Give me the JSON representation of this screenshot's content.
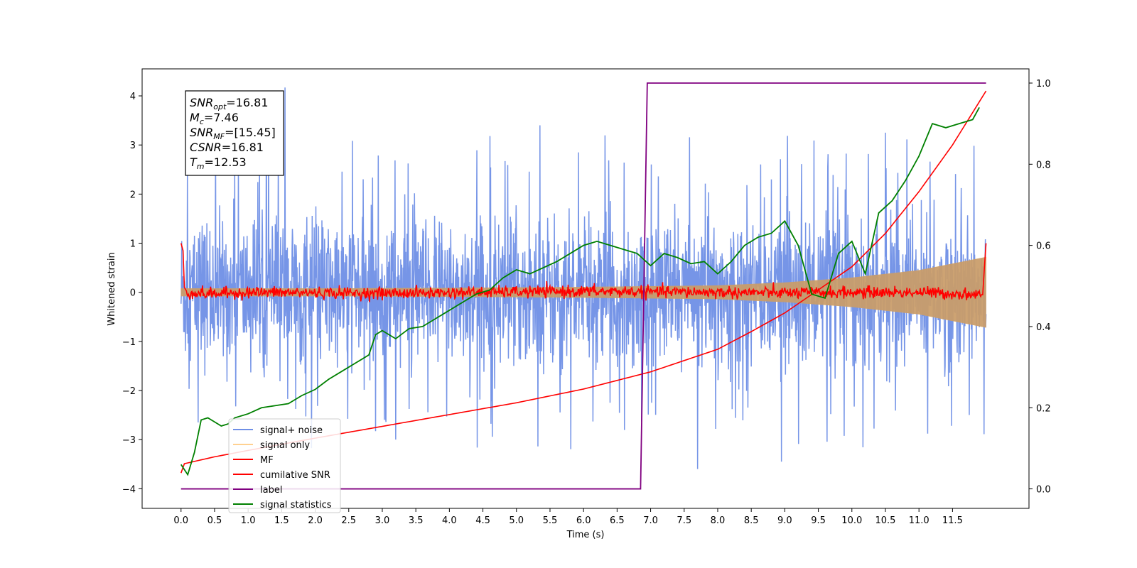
{
  "chart_data": {
    "type": "line",
    "xlabel": "Time (s)",
    "ylabel_left": "Whitened strain",
    "ylabel_right": "",
    "xlim": [
      -0.58,
      12.64
    ],
    "ylim_left": [
      -4.4,
      4.55
    ],
    "ylim_right": [
      -0.048,
      1.035
    ],
    "x_ticks": [
      "0.0",
      "0.5",
      "1.0",
      "1.5",
      "2.0",
      "2.5",
      "3.0",
      "3.5",
      "4.0",
      "4.5",
      "5.0",
      "5.5",
      "6.0",
      "6.5",
      "7.0",
      "7.5",
      "8.0",
      "8.5",
      "9.0",
      "9.5",
      "10.0",
      "10.5",
      "11.0",
      "11.5"
    ],
    "y_ticks_left": [
      "4",
      "3",
      "2",
      "1",
      "0",
      "−1",
      "−2",
      "−3",
      "−4"
    ],
    "y_ticks_right": [
      "1.0",
      "0.8",
      "0.6",
      "0.4",
      "0.2",
      "0.0"
    ],
    "grid": false,
    "legend_position": "lower-left",
    "annotation": {
      "lines": [
        {
          "sym": "SNR",
          "sub": "opt",
          "val": "=16.81"
        },
        {
          "sym": "M",
          "sub": "c",
          "val": "=7.46"
        },
        {
          "sym": "SNR",
          "sub": "MF",
          "val": "=[15.45]"
        },
        {
          "sym": "CSNR",
          "sub": "",
          "val": "=16.81"
        },
        {
          "sym": "T",
          "sub": "m",
          "val": "=12.53"
        }
      ]
    },
    "series": [
      {
        "name": "signal+ noise",
        "color": "#6f8fe6",
        "axis": "left",
        "style": "noise",
        "x_range": [
          0.0,
          12.0
        ],
        "envelope_upper": 2.5,
        "envelope_lower": -2.5,
        "dense_band": [
          -1.35,
          1.35
        ],
        "peak_values": [
          4.17,
          -3.6,
          3.4,
          -3.45
        ]
      },
      {
        "name": "signal only",
        "color": "#ffb347",
        "axis": "left",
        "style": "chirp",
        "x_range": [
          0.0,
          12.0
        ],
        "amplitude": {
          "x": [
            0.0,
            2.0,
            4.0,
            6.0,
            8.0,
            9.0,
            10.0,
            11.0,
            12.0
          ],
          "y": [
            0.08,
            0.08,
            0.09,
            0.11,
            0.14,
            0.2,
            0.3,
            0.45,
            0.72
          ]
        }
      },
      {
        "name": "MF",
        "color": "#ff0000",
        "axis": "left",
        "style": "mf",
        "x": [
          0.0,
          0.03,
          0.05,
          0.1,
          0.5,
          1.0,
          3.0,
          6.0,
          9.0,
          11.0,
          11.95,
          11.98,
          12.0
        ],
        "y": [
          1.0,
          0.85,
          0.1,
          -0.02,
          -0.03,
          0.0,
          -0.02,
          0.02,
          -0.01,
          0.0,
          -0.05,
          0.6,
          1.0
        ],
        "jitter": 0.06
      },
      {
        "name": "cumilative SNR",
        "color": "#ff0000",
        "axis": "left",
        "x": [
          0.0,
          0.02,
          0.5,
          1.0,
          2.0,
          3.0,
          4.0,
          5.0,
          6.0,
          7.0,
          8.0,
          8.5,
          9.0,
          9.5,
          10.0,
          10.5,
          11.0,
          11.5,
          12.0
        ],
        "y": [
          -3.68,
          -3.5,
          -3.35,
          -3.22,
          -2.97,
          -2.73,
          -2.49,
          -2.25,
          -1.97,
          -1.62,
          -1.16,
          -0.8,
          -0.42,
          0.05,
          0.52,
          1.2,
          2.05,
          3.0,
          4.1
        ]
      },
      {
        "name": "label",
        "color": "#800080",
        "axis": "right",
        "x": [
          0.0,
          6.85,
          6.95,
          12.0
        ],
        "y": [
          0.0,
          0.0,
          1.0,
          1.0
        ]
      },
      {
        "name": "signal statistics",
        "color": "#008000",
        "axis": "right",
        "x": [
          0.0,
          0.1,
          0.2,
          0.3,
          0.4,
          0.5,
          0.6,
          0.7,
          0.8,
          1.0,
          1.2,
          1.4,
          1.6,
          1.8,
          2.0,
          2.2,
          2.4,
          2.6,
          2.8,
          2.9,
          3.0,
          3.2,
          3.4,
          3.6,
          3.8,
          4.0,
          4.2,
          4.4,
          4.6,
          4.8,
          5.0,
          5.2,
          5.4,
          5.6,
          5.8,
          6.0,
          6.2,
          6.4,
          6.6,
          6.8,
          7.0,
          7.2,
          7.4,
          7.6,
          7.8,
          8.0,
          8.2,
          8.4,
          8.6,
          8.8,
          9.0,
          9.2,
          9.4,
          9.6,
          9.8,
          10.0,
          10.2,
          10.4,
          10.6,
          10.8,
          11.0,
          11.2,
          11.4,
          11.6,
          11.8,
          11.9
        ],
        "y": [
          0.06,
          0.035,
          0.09,
          0.17,
          0.175,
          0.165,
          0.155,
          0.16,
          0.175,
          0.185,
          0.2,
          0.205,
          0.21,
          0.23,
          0.245,
          0.27,
          0.29,
          0.31,
          0.33,
          0.38,
          0.39,
          0.37,
          0.395,
          0.4,
          0.42,
          0.44,
          0.46,
          0.48,
          0.49,
          0.52,
          0.54,
          0.53,
          0.545,
          0.56,
          0.58,
          0.6,
          0.61,
          0.6,
          0.59,
          0.58,
          0.55,
          0.58,
          0.57,
          0.555,
          0.56,
          0.53,
          0.56,
          0.6,
          0.62,
          0.63,
          0.66,
          0.6,
          0.48,
          0.47,
          0.58,
          0.61,
          0.53,
          0.68,
          0.71,
          0.76,
          0.82,
          0.9,
          0.89,
          0.9,
          0.91,
          0.94
        ]
      }
    ]
  }
}
